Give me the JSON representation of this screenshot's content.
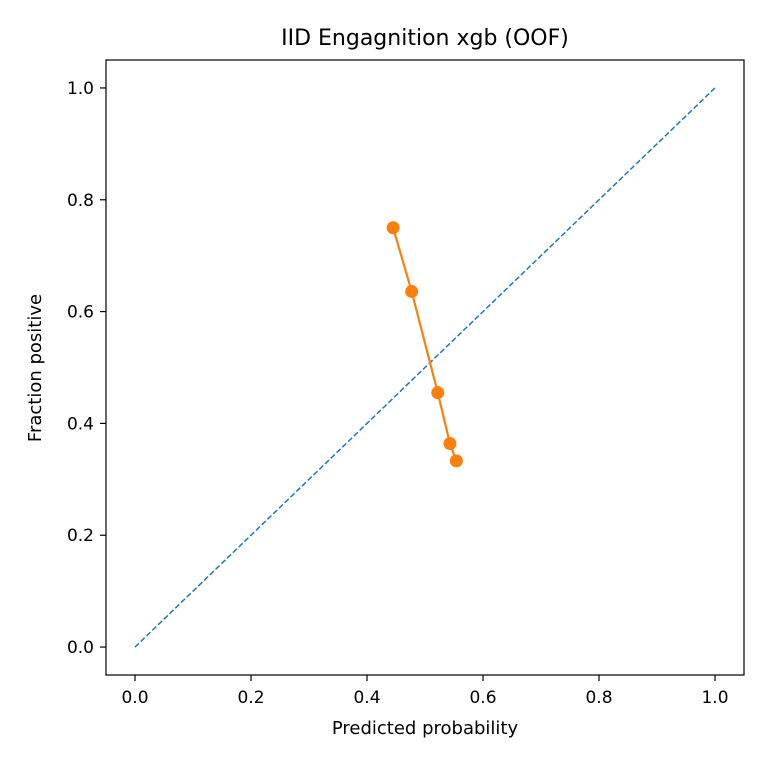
{
  "chart_data": {
    "type": "line",
    "title": "IID Engagnition xgb (OOF)",
    "xlabel": "Predicted probability",
    "ylabel": "Fraction positive",
    "xlim": [
      -0.05,
      1.05
    ],
    "ylim": [
      -0.05,
      1.05
    ],
    "x_ticks": [
      "0.0",
      "0.2",
      "0.4",
      "0.6",
      "0.8",
      "1.0"
    ],
    "y_ticks": [
      "0.0",
      "0.2",
      "0.4",
      "0.6",
      "0.8",
      "1.0"
    ],
    "grid": false,
    "legend": "none",
    "series": [
      {
        "style": "dashed",
        "color": "#1f77b4",
        "x": [
          0.0,
          1.0
        ],
        "y": [
          0.0,
          1.0
        ]
      },
      {
        "style": "line-marker",
        "color": "#ff7f0e",
        "x": [
          0.445,
          0.477,
          0.522,
          0.543,
          0.554
        ],
        "y": [
          0.75,
          0.636,
          0.455,
          0.364,
          0.333
        ]
      }
    ]
  }
}
